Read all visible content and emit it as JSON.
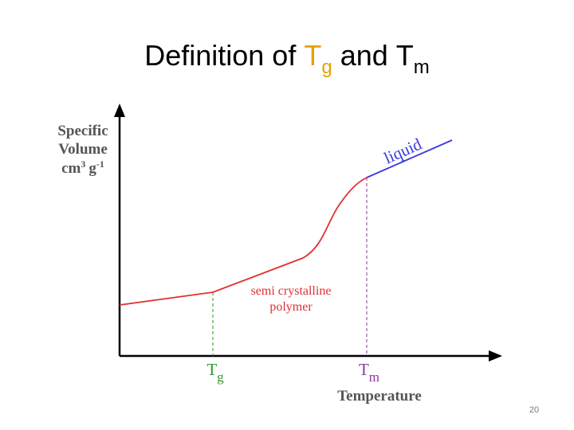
{
  "title": {
    "segments": [
      {
        "text": "Definition of",
        "color": "#000000"
      },
      {
        "text": "T",
        "color": "#e6a100"
      },
      {
        "text": "g",
        "color": "#e6a100",
        "sub": true
      },
      {
        "text": "and",
        "color": "#000000"
      },
      {
        "text": "T",
        "color": "#000000"
      },
      {
        "text": "m",
        "color": "#000000",
        "sub": true
      }
    ]
  },
  "diagram": {
    "y_axis_label": {
      "line1": "Specific",
      "line2": "Volume",
      "unit": [
        "cm",
        "3",
        "g",
        "-1"
      ]
    },
    "x_axis_label": "Temperature",
    "curve_label": {
      "line1": "semi crystalline",
      "line2": "polymer"
    },
    "liquid_label": "liquid",
    "tg_label": [
      "T",
      "g"
    ],
    "tm_label": [
      "T",
      "m"
    ]
  },
  "page_number": "20"
}
